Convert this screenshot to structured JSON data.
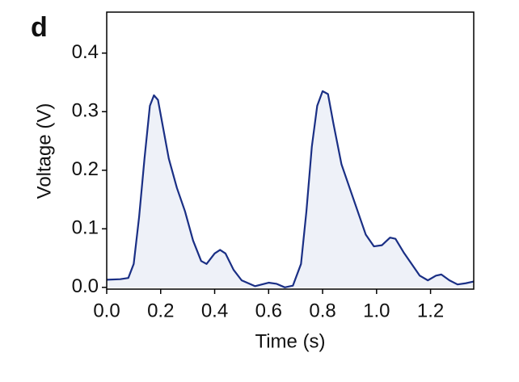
{
  "chart_data": {
    "type": "area",
    "panel_label": "d",
    "x_label": "Time (s)",
    "y_label": "Voltage (V)",
    "color": "#1a2f85",
    "fill": "#eef1f8",
    "xlim": [
      0,
      1.36
    ],
    "ylim": [
      -0.003,
      0.47
    ],
    "xticks": [
      {
        "value": 0,
        "label": "0.0"
      },
      0.2,
      0.4,
      0.6,
      0.8,
      {
        "value": 1,
        "label": "1.0"
      },
      1.2
    ],
    "yticks": [
      {
        "value": 0,
        "label": "0.0"
      },
      0.1,
      0.2,
      0.3,
      0.4
    ],
    "series": [
      {
        "x": [
          0,
          0.05,
          0.08,
          0.1,
          0.12,
          0.14,
          0.16,
          0.175,
          0.19,
          0.21,
          0.23,
          0.26,
          0.29,
          0.32,
          0.35,
          0.37,
          0.4,
          0.42,
          0.44,
          0.47,
          0.5,
          0.55,
          0.6,
          0.63,
          0.66,
          0.69,
          0.72,
          0.74,
          0.76,
          0.78,
          0.8,
          0.82,
          0.84,
          0.87,
          0.9,
          0.93,
          0.96,
          0.99,
          1.02,
          1.05,
          1.07,
          1.1,
          1.13,
          1.16,
          1.19,
          1.22,
          1.24,
          1.27,
          1.3,
          1.33,
          1.36
        ],
        "values": [
          0.013,
          0.014,
          0.016,
          0.04,
          0.12,
          0.22,
          0.31,
          0.328,
          0.32,
          0.27,
          0.22,
          0.17,
          0.13,
          0.08,
          0.045,
          0.04,
          0.058,
          0.064,
          0.058,
          0.03,
          0.012,
          0.002,
          0.008,
          0.006,
          0.0,
          0.003,
          0.04,
          0.13,
          0.24,
          0.31,
          0.335,
          0.33,
          0.28,
          0.21,
          0.17,
          0.13,
          0.09,
          0.07,
          0.072,
          0.085,
          0.083,
          0.06,
          0.04,
          0.02,
          0.012,
          0.02,
          0.022,
          0.012,
          0.005,
          0.007,
          0.01
        ]
      }
    ]
  }
}
